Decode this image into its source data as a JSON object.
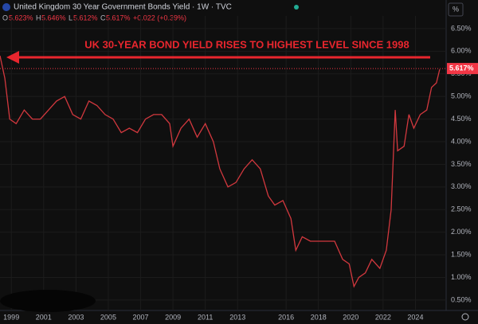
{
  "chart_data": {
    "type": "line",
    "title": "United Kingdom 30 Year Government Bonds Yield · 1W · TVC",
    "ohlc": {
      "open_tag": "O",
      "open": "5.623%",
      "high_tag": "H",
      "high": "5.646%",
      "low_tag": "L",
      "low": "5.612%",
      "close_tag": "C",
      "close": "5.617%",
      "change": "+0.022 (+0.39%)"
    },
    "annotation": "UK 30-YEAR BOND YIELD RISES TO HIGHEST LEVEL SINCE 1998",
    "scale_unit": "%",
    "last_price": {
      "value": 5.617,
      "label": "5.617%"
    },
    "color": "#d2383e",
    "x": [
      1998.3,
      1998.6,
      1998.9,
      1999.3,
      1999.8,
      2000.3,
      2000.8,
      2001.3,
      2001.8,
      2002.3,
      2002.8,
      2003.3,
      2003.8,
      2004.3,
      2004.8,
      2005.3,
      2005.8,
      2006.3,
      2006.8,
      2007.3,
      2007.8,
      2008.3,
      2008.8,
      2009.0,
      2009.5,
      2010.0,
      2010.5,
      2011.0,
      2011.5,
      2011.9,
      2012.4,
      2012.9,
      2013.4,
      2013.9,
      2014.4,
      2014.9,
      2015.3,
      2015.8,
      2016.3,
      2016.6,
      2017.0,
      2017.5,
      2018.0,
      2018.5,
      2019.0,
      2019.5,
      2019.9,
      2020.2,
      2020.5,
      2020.9,
      2021.3,
      2021.8,
      2022.2,
      2022.5,
      2022.75,
      2022.9,
      2023.3,
      2023.6,
      2023.9,
      2024.3,
      2024.7,
      2025.0,
      2025.3,
      2025.5
    ],
    "values": [
      5.9,
      5.4,
      4.5,
      4.4,
      4.7,
      4.5,
      4.5,
      4.7,
      4.9,
      5.0,
      4.6,
      4.5,
      4.9,
      4.8,
      4.6,
      4.5,
      4.2,
      4.3,
      4.2,
      4.5,
      4.6,
      4.6,
      4.4,
      3.9,
      4.3,
      4.5,
      4.1,
      4.4,
      4.0,
      3.4,
      3.0,
      3.1,
      3.4,
      3.6,
      3.4,
      2.8,
      2.6,
      2.7,
      2.3,
      1.6,
      1.9,
      1.8,
      1.8,
      1.8,
      1.8,
      1.4,
      1.3,
      0.8,
      1.0,
      1.1,
      1.4,
      1.2,
      1.6,
      2.5,
      4.7,
      3.8,
      3.9,
      4.6,
      4.3,
      4.6,
      4.7,
      5.2,
      5.3,
      5.6
    ],
    "xlim": [
      1998.3,
      2025.9
    ],
    "xticks": [
      1999,
      2001,
      2003,
      2005,
      2007,
      2009,
      2011,
      2013,
      2016,
      2018,
      2020,
      2022,
      2024
    ],
    "ylim": [
      0.27,
      6.78
    ],
    "yticks": [
      {
        "value": 0.5,
        "label": "0.50%"
      },
      {
        "value": 1,
        "label": "1.00%"
      },
      {
        "value": 1.5,
        "label": "1.50%"
      },
      {
        "value": 2,
        "label": "2.00%"
      },
      {
        "value": 2.5,
        "label": "2.50%"
      },
      {
        "value": 3,
        "label": "3.00%"
      },
      {
        "value": 3.5,
        "label": "3.50%"
      },
      {
        "value": 4,
        "label": "4.00%"
      },
      {
        "value": 4.5,
        "label": "4.50%"
      },
      {
        "value": 5,
        "label": "5.00%"
      },
      {
        "value": 5.5,
        "label": "5.50%"
      },
      {
        "value": 6,
        "label": "6.00%"
      },
      {
        "value": 6.5,
        "label": "6.50%"
      }
    ]
  }
}
